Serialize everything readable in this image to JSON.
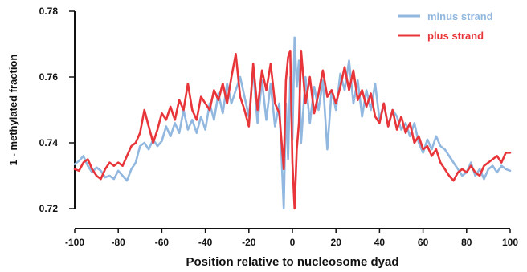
{
  "chart_data": {
    "type": "line",
    "xlabel": "Position relative to nucleosome dyad",
    "ylabel": "1 - methylated fraction",
    "xlim": [
      -100,
      100
    ],
    "ylim": [
      0.72,
      0.78
    ],
    "x_ticks": [
      "-100",
      "-80",
      "-60",
      "-40",
      "-20",
      "0",
      "20",
      "40",
      "60",
      "80",
      "100"
    ],
    "y_ticks": [
      "0.72",
      "0.74",
      "0.76",
      "0.78"
    ],
    "legend_position": "top-right",
    "grid": false,
    "series": [
      {
        "name": "minus strand",
        "color": "#92b8e0",
        "points": [
          [
            -100,
            0.7335
          ],
          [
            -98,
            0.7345
          ],
          [
            -96,
            0.736
          ],
          [
            -94,
            0.733
          ],
          [
            -92,
            0.731
          ],
          [
            -90,
            0.7325
          ],
          [
            -88,
            0.7315
          ],
          [
            -86,
            0.7295
          ],
          [
            -84,
            0.73
          ],
          [
            -82,
            0.729
          ],
          [
            -80,
            0.7315
          ],
          [
            -78,
            0.73
          ],
          [
            -76,
            0.7285
          ],
          [
            -74,
            0.732
          ],
          [
            -72,
            0.734
          ],
          [
            -70,
            0.739
          ],
          [
            -68,
            0.74
          ],
          [
            -66,
            0.738
          ],
          [
            -64,
            0.741
          ],
          [
            -62,
            0.739
          ],
          [
            -60,
            0.7405
          ],
          [
            -58,
            0.745
          ],
          [
            -56,
            0.742
          ],
          [
            -54,
            0.746
          ],
          [
            -52,
            0.743
          ],
          [
            -50,
            0.75
          ],
          [
            -48,
            0.744
          ],
          [
            -46,
            0.747
          ],
          [
            -44,
            0.743
          ],
          [
            -42,
            0.748
          ],
          [
            -40,
            0.744
          ],
          [
            -38,
            0.752
          ],
          [
            -36,
            0.747
          ],
          [
            -34,
            0.755
          ],
          [
            -32,
            0.749
          ],
          [
            -30,
            0.758
          ],
          [
            -28,
            0.752
          ],
          [
            -26,
            0.756
          ],
          [
            -24,
            0.76
          ],
          [
            -22,
            0.754
          ],
          [
            -20,
            0.748
          ],
          [
            -18,
            0.762
          ],
          [
            -16,
            0.746
          ],
          [
            -14,
            0.759
          ],
          [
            -12,
            0.747
          ],
          [
            -10,
            0.758
          ],
          [
            -8,
            0.745
          ],
          [
            -6,
            0.752
          ],
          [
            -4,
            0.72
          ],
          [
            -3,
            0.752
          ],
          [
            -2,
            0.735
          ],
          [
            -1,
            0.76
          ],
          [
            0,
            0.741
          ],
          [
            1,
            0.772
          ],
          [
            2,
            0.757
          ],
          [
            3,
            0.765
          ],
          [
            4,
            0.74
          ],
          [
            6,
            0.76
          ],
          [
            8,
            0.746
          ],
          [
            10,
            0.757
          ],
          [
            12,
            0.75
          ],
          [
            14,
            0.759
          ],
          [
            16,
            0.738
          ],
          [
            18,
            0.756
          ],
          [
            20,
            0.75
          ],
          [
            22,
            0.761
          ],
          [
            24,
            0.756
          ],
          [
            26,
            0.765
          ],
          [
            28,
            0.752
          ],
          [
            30,
            0.759
          ],
          [
            32,
            0.748
          ],
          [
            34,
            0.756
          ],
          [
            36,
            0.75
          ],
          [
            38,
            0.758
          ],
          [
            40,
            0.747
          ],
          [
            42,
            0.752
          ],
          [
            44,
            0.745
          ],
          [
            46,
            0.75
          ],
          [
            48,
            0.748
          ],
          [
            50,
            0.744
          ],
          [
            52,
            0.746
          ],
          [
            54,
            0.742
          ],
          [
            56,
            0.746
          ],
          [
            58,
            0.74
          ],
          [
            60,
            0.737
          ],
          [
            62,
            0.741
          ],
          [
            64,
            0.738
          ],
          [
            66,
            0.742
          ],
          [
            68,
            0.739
          ],
          [
            70,
            0.738
          ],
          [
            72,
            0.736
          ],
          [
            74,
            0.734
          ],
          [
            76,
            0.732
          ],
          [
            78,
            0.73
          ],
          [
            80,
            0.731
          ],
          [
            82,
            0.734
          ],
          [
            84,
            0.73
          ],
          [
            86,
            0.732
          ],
          [
            88,
            0.729
          ],
          [
            90,
            0.732
          ],
          [
            92,
            0.733
          ],
          [
            94,
            0.731
          ],
          [
            96,
            0.733
          ],
          [
            98,
            0.732
          ],
          [
            100,
            0.7315
          ]
        ]
      },
      {
        "name": "plus strand",
        "color": "#e8353a",
        "points": [
          [
            -100,
            0.732
          ],
          [
            -98,
            0.7315
          ],
          [
            -96,
            0.734
          ],
          [
            -94,
            0.735
          ],
          [
            -92,
            0.732
          ],
          [
            -90,
            0.73
          ],
          [
            -88,
            0.729
          ],
          [
            -86,
            0.732
          ],
          [
            -84,
            0.734
          ],
          [
            -82,
            0.733
          ],
          [
            -80,
            0.734
          ],
          [
            -78,
            0.733
          ],
          [
            -76,
            0.736
          ],
          [
            -74,
            0.739
          ],
          [
            -72,
            0.74
          ],
          [
            -70,
            0.743
          ],
          [
            -68,
            0.75
          ],
          [
            -66,
            0.745
          ],
          [
            -64,
            0.74
          ],
          [
            -62,
            0.744
          ],
          [
            -60,
            0.749
          ],
          [
            -58,
            0.747
          ],
          [
            -56,
            0.751
          ],
          [
            -54,
            0.747
          ],
          [
            -52,
            0.753
          ],
          [
            -50,
            0.75
          ],
          [
            -48,
            0.758
          ],
          [
            -46,
            0.75
          ],
          [
            -44,
            0.747
          ],
          [
            -42,
            0.754
          ],
          [
            -40,
            0.752
          ],
          [
            -38,
            0.75
          ],
          [
            -36,
            0.756
          ],
          [
            -34,
            0.753
          ],
          [
            -32,
            0.758
          ],
          [
            -30,
            0.752
          ],
          [
            -28,
            0.76
          ],
          [
            -26,
            0.767
          ],
          [
            -24,
            0.754
          ],
          [
            -22,
            0.75
          ],
          [
            -20,
            0.745
          ],
          [
            -18,
            0.764
          ],
          [
            -16,
            0.75
          ],
          [
            -14,
            0.762
          ],
          [
            -12,
            0.756
          ],
          [
            -10,
            0.764
          ],
          [
            -8,
            0.752
          ],
          [
            -6,
            0.749
          ],
          [
            -4,
            0.732
          ],
          [
            -3,
            0.759
          ],
          [
            -2,
            0.766
          ],
          [
            -1,
            0.768
          ],
          [
            0,
            0.734
          ],
          [
            1,
            0.72
          ],
          [
            2,
            0.738
          ],
          [
            3,
            0.746
          ],
          [
            4,
            0.768
          ],
          [
            6,
            0.752
          ],
          [
            8,
            0.76
          ],
          [
            10,
            0.749
          ],
          [
            12,
            0.755
          ],
          [
            14,
            0.762
          ],
          [
            16,
            0.754
          ],
          [
            18,
            0.756
          ],
          [
            20,
            0.752
          ],
          [
            22,
            0.757
          ],
          [
            24,
            0.763
          ],
          [
            26,
            0.756
          ],
          [
            28,
            0.762
          ],
          [
            30,
            0.753
          ],
          [
            32,
            0.756
          ],
          [
            34,
            0.751
          ],
          [
            36,
            0.755
          ],
          [
            38,
            0.748
          ],
          [
            40,
            0.746
          ],
          [
            42,
            0.752
          ],
          [
            44,
            0.745
          ],
          [
            46,
            0.75
          ],
          [
            48,
            0.744
          ],
          [
            50,
            0.748
          ],
          [
            52,
            0.743
          ],
          [
            54,
            0.746
          ],
          [
            56,
            0.74
          ],
          [
            58,
            0.742
          ],
          [
            60,
            0.738
          ],
          [
            62,
            0.739
          ],
          [
            64,
            0.736
          ],
          [
            66,
            0.738
          ],
          [
            68,
            0.734
          ],
          [
            70,
            0.732
          ],
          [
            72,
            0.73
          ],
          [
            74,
            0.7285
          ],
          [
            76,
            0.731
          ],
          [
            78,
            0.732
          ],
          [
            80,
            0.731
          ],
          [
            82,
            0.733
          ],
          [
            84,
            0.731
          ],
          [
            86,
            0.73
          ],
          [
            88,
            0.733
          ],
          [
            90,
            0.734
          ],
          [
            92,
            0.735
          ],
          [
            94,
            0.736
          ],
          [
            96,
            0.734
          ],
          [
            98,
            0.737
          ],
          [
            100,
            0.737
          ]
        ]
      }
    ]
  }
}
